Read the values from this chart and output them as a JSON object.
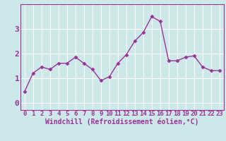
{
  "x": [
    0,
    1,
    2,
    3,
    4,
    5,
    6,
    7,
    8,
    9,
    10,
    11,
    12,
    13,
    14,
    15,
    16,
    17,
    18,
    19,
    20,
    21,
    22,
    23
  ],
  "y": [
    0.45,
    1.2,
    1.45,
    1.35,
    1.6,
    1.6,
    1.85,
    1.6,
    1.35,
    0.9,
    1.05,
    1.6,
    1.95,
    2.5,
    2.85,
    3.5,
    3.3,
    1.7,
    1.7,
    1.85,
    1.9,
    1.45,
    1.3,
    1.3
  ],
  "line_color": "#993399",
  "marker": "D",
  "marker_size": 2.5,
  "linewidth": 1.0,
  "xlabel": "Windchill (Refroidissement éolien,°C)",
  "xlabel_fontsize": 7,
  "xlabel_color": "#993399",
  "xtick_labels": [
    "0",
    "1",
    "2",
    "3",
    "4",
    "5",
    "6",
    "7",
    "8",
    "9",
    "10",
    "11",
    "12",
    "13",
    "14",
    "15",
    "16",
    "17",
    "18",
    "19",
    "20",
    "21",
    "22",
    "23"
  ],
  "ytick_values": [
    0,
    1,
    2,
    3
  ],
  "ylim": [
    -0.3,
    4.0
  ],
  "xlim": [
    -0.5,
    23.5
  ],
  "background_color": "#cde8e8",
  "grid_color": "#ffffff",
  "tick_color": "#993399",
  "tick_fontsize": 6.5,
  "ytick_fontsize": 8
}
